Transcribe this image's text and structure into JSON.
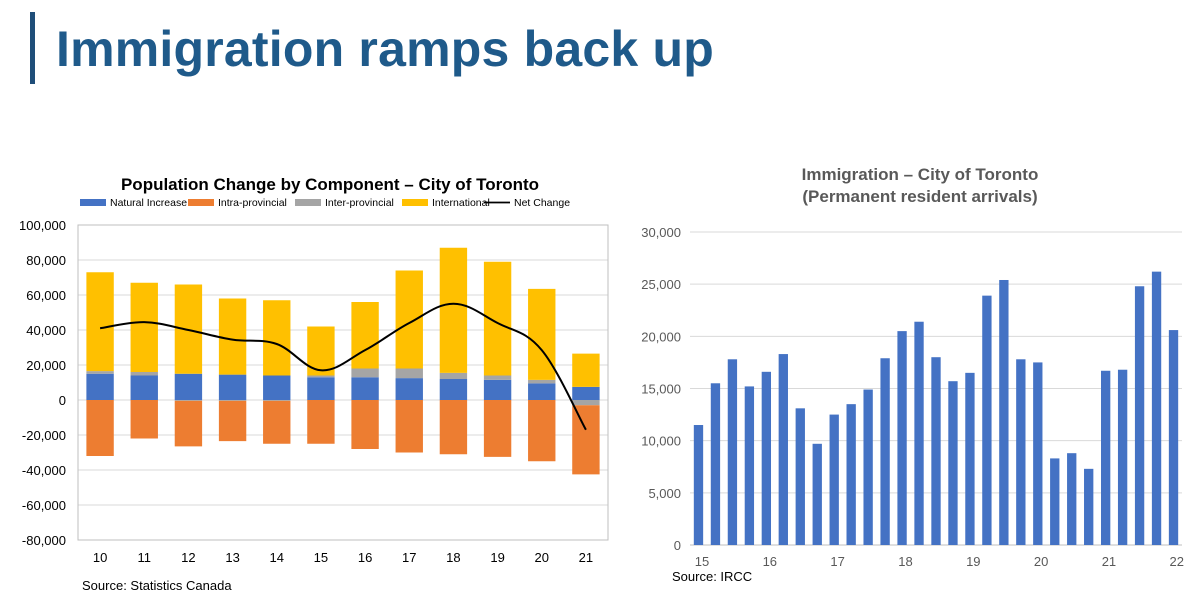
{
  "page": {
    "title": "Immigration ramps back up",
    "colors": {
      "title": "#1f5a8a",
      "title_bar": "#1f4e79"
    }
  },
  "left_source": "Source: Statistics Canada",
  "right_source": "Source: IRCC",
  "chart_data": [
    {
      "type": "bar",
      "stacked": true,
      "title": "Population Change by Component – City of Toronto",
      "categories": [
        "10",
        "11",
        "12",
        "13",
        "14",
        "15",
        "16",
        "17",
        "18",
        "19",
        "20",
        "21"
      ],
      "series": [
        {
          "name": "Natural Increase",
          "color": "#4472c4",
          "values": [
            15000,
            14000,
            15000,
            14500,
            14000,
            13000,
            13000,
            12500,
            12000,
            11500,
            9500,
            7500
          ]
        },
        {
          "name": "Intra-provincial",
          "color": "#ed7d31",
          "values": [
            -32000,
            -22000,
            -26000,
            -23000,
            -24500,
            -25000,
            -28000,
            -30000,
            -31000,
            -32500,
            -35000,
            -39500
          ]
        },
        {
          "name": "Inter-provincial",
          "color": "#a5a5a5",
          "values": [
            1500,
            2000,
            -500,
            -500,
            -500,
            1000,
            5000,
            5500,
            3500,
            2500,
            2000,
            -3000
          ]
        },
        {
          "name": "International",
          "color": "#ffc000",
          "values": [
            56500,
            51000,
            51000,
            43500,
            43000,
            28000,
            38000,
            56000,
            71500,
            65000,
            52000,
            19000
          ]
        }
      ],
      "line": {
        "name": "Net Change",
        "color": "#000000",
        "values": [
          41000,
          44500,
          40000,
          34500,
          32000,
          17000,
          28500,
          44000,
          55000,
          44000,
          28500,
          -17000
        ]
      },
      "y_ticks": [
        "100,000",
        "80,000",
        "60,000",
        "40,000",
        "20,000",
        "0",
        "-20,000",
        "-40,000",
        "-60,000",
        "-80,000"
      ],
      "ylim": [
        -80000,
        100000
      ],
      "legend_position": "top"
    },
    {
      "type": "bar",
      "title_line1": "Immigration – City of Toronto",
      "title_line2": "(Permanent resident arrivals)",
      "color": "#4472c4",
      "values": [
        11500,
        15500,
        17800,
        15200,
        16600,
        18300,
        13100,
        9700,
        12500,
        13500,
        14900,
        17900,
        20500,
        21400,
        18000,
        15700,
        16500,
        23900,
        25400,
        17800,
        17500,
        8300,
        8800,
        7300,
        16700,
        16800,
        24800,
        26200,
        20600
      ],
      "x_ticks": [
        "15",
        "16",
        "17",
        "18",
        "19",
        "20",
        "21",
        "22"
      ],
      "y_ticks": [
        "30,000",
        "25,000",
        "20,000",
        "15,000",
        "10,000",
        "5,000",
        "0"
      ],
      "ylim": [
        0,
        30000
      ]
    }
  ]
}
